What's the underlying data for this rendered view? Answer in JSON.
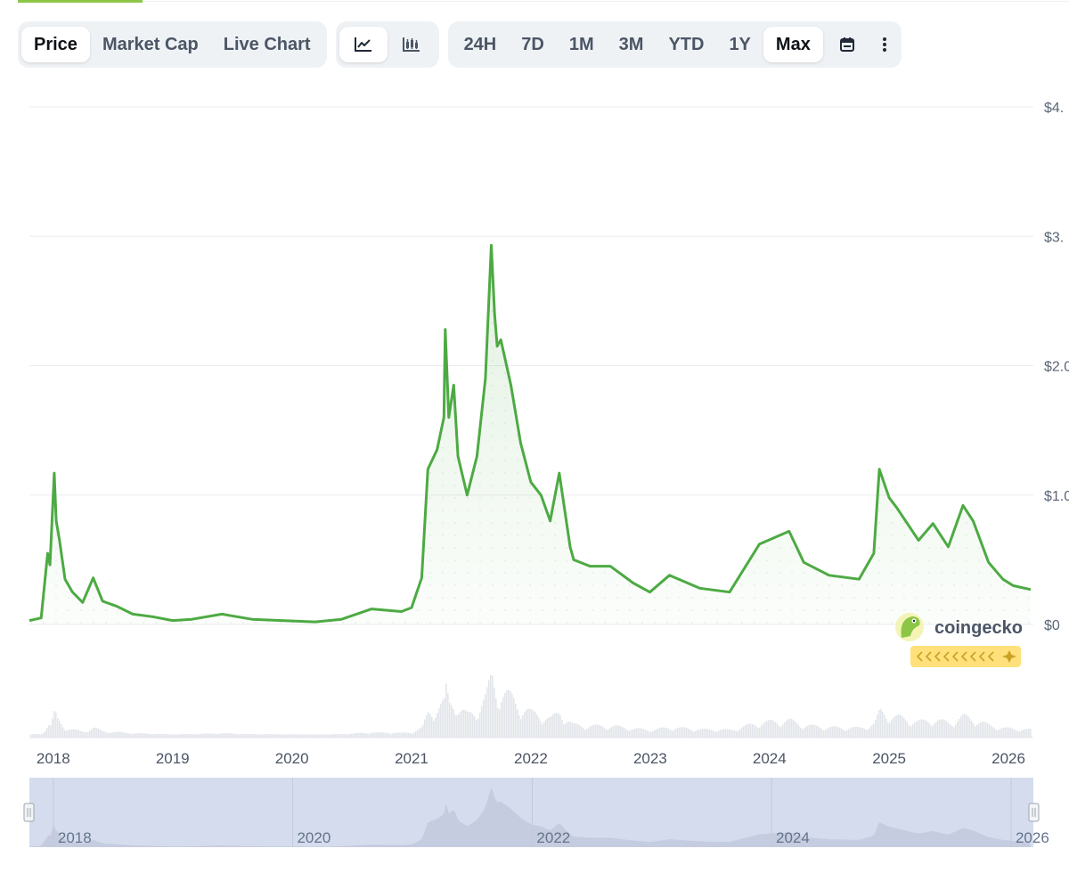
{
  "tabs": [
    {
      "label": "Price",
      "active": true
    },
    {
      "label": "Market Cap",
      "active": false
    },
    {
      "label": "Live Chart",
      "active": false
    }
  ],
  "chart_types": [
    {
      "icon": "line-chart-icon",
      "active": true
    },
    {
      "icon": "candlestick-chart-icon",
      "active": false
    }
  ],
  "ranges": [
    {
      "label": "24H",
      "active": false
    },
    {
      "label": "7D",
      "active": false
    },
    {
      "label": "1M",
      "active": false
    },
    {
      "label": "3M",
      "active": false
    },
    {
      "label": "YTD",
      "active": false
    },
    {
      "label": "1Y",
      "active": false
    },
    {
      "label": "Max",
      "active": true
    }
  ],
  "toolbar_icons": {
    "calendar": "calendar-icon",
    "more": "more-vertical-icon"
  },
  "watermark": {
    "text": "coingecko",
    "logo": "coingecko-logo-icon"
  },
  "colors": {
    "line": "#4daa43",
    "accent": "#8dc647",
    "volume": "#e2e5ea",
    "navigator": "#d5dcee"
  },
  "chart_data": {
    "type": "line",
    "title": "",
    "xlabel": "",
    "ylabel": "",
    "y_ticks": [
      "$0",
      "$1.0",
      "$2.0",
      "$3.",
      "$4."
    ],
    "ylim": [
      0,
      4.0
    ],
    "x_range": [
      "2017-10-20",
      "2026-03-10"
    ],
    "x_ticks": [
      "2018",
      "2019",
      "2020",
      "2021",
      "2022",
      "2023",
      "2024",
      "2025",
      "2026"
    ],
    "navigator_ticks": [
      "2018",
      "2020",
      "2022",
      "2024",
      "2026"
    ],
    "grid": true,
    "series": [
      {
        "values": [
          [
            "2017-10-20",
            0.03
          ],
          [
            "2017-11-25",
            0.05
          ],
          [
            "2017-12-15",
            0.55
          ],
          [
            "2017-12-22",
            0.46
          ],
          [
            "2018-01-04",
            1.17
          ],
          [
            "2018-01-10",
            0.8
          ],
          [
            "2018-01-20",
            0.65
          ],
          [
            "2018-02-06",
            0.35
          ],
          [
            "2018-03-01",
            0.25
          ],
          [
            "2018-04-01",
            0.17
          ],
          [
            "2018-05-03",
            0.36
          ],
          [
            "2018-06-01",
            0.18
          ],
          [
            "2018-07-15",
            0.14
          ],
          [
            "2018-09-01",
            0.08
          ],
          [
            "2018-11-01",
            0.06
          ],
          [
            "2019-01-01",
            0.03
          ],
          [
            "2019-03-01",
            0.04
          ],
          [
            "2019-06-01",
            0.08
          ],
          [
            "2019-09-01",
            0.04
          ],
          [
            "2019-12-01",
            0.03
          ],
          [
            "2020-03-12",
            0.02
          ],
          [
            "2020-06-01",
            0.04
          ],
          [
            "2020-09-01",
            0.12
          ],
          [
            "2020-12-01",
            0.1
          ],
          [
            "2021-01-01",
            0.13
          ],
          [
            "2021-02-01",
            0.36
          ],
          [
            "2021-02-20",
            1.2
          ],
          [
            "2021-03-20",
            1.35
          ],
          [
            "2021-04-10",
            1.6
          ],
          [
            "2021-04-14",
            2.28
          ],
          [
            "2021-04-25",
            1.6
          ],
          [
            "2021-05-10",
            1.85
          ],
          [
            "2021-05-23",
            1.3
          ],
          [
            "2021-06-20",
            1.0
          ],
          [
            "2021-07-20",
            1.3
          ],
          [
            "2021-08-15",
            1.9
          ],
          [
            "2021-09-02",
            2.93
          ],
          [
            "2021-09-12",
            2.4
          ],
          [
            "2021-09-20",
            2.15
          ],
          [
            "2021-10-01",
            2.2
          ],
          [
            "2021-11-01",
            1.85
          ],
          [
            "2021-12-01",
            1.4
          ],
          [
            "2022-01-01",
            1.1
          ],
          [
            "2022-02-01",
            1.0
          ],
          [
            "2022-03-01",
            0.8
          ],
          [
            "2022-03-29",
            1.17
          ],
          [
            "2022-05-01",
            0.6
          ],
          [
            "2022-05-12",
            0.5
          ],
          [
            "2022-07-01",
            0.45
          ],
          [
            "2022-09-01",
            0.45
          ],
          [
            "2022-11-10",
            0.32
          ],
          [
            "2022-12-31",
            0.25
          ],
          [
            "2023-03-01",
            0.38
          ],
          [
            "2023-06-01",
            0.28
          ],
          [
            "2023-09-01",
            0.25
          ],
          [
            "2023-12-01",
            0.62
          ],
          [
            "2024-03-01",
            0.72
          ],
          [
            "2024-04-15",
            0.48
          ],
          [
            "2024-07-01",
            0.38
          ],
          [
            "2024-10-01",
            0.35
          ],
          [
            "2024-11-15",
            0.55
          ],
          [
            "2024-12-02",
            1.2
          ],
          [
            "2025-01-01",
            0.98
          ],
          [
            "2025-01-25",
            0.9
          ],
          [
            "2025-04-01",
            0.65
          ],
          [
            "2025-05-15",
            0.78
          ],
          [
            "2025-07-01",
            0.6
          ],
          [
            "2025-08-15",
            0.92
          ],
          [
            "2025-09-15",
            0.8
          ],
          [
            "2025-11-01",
            0.48
          ],
          [
            "2025-12-15",
            0.35
          ],
          [
            "2026-01-15",
            0.3
          ],
          [
            "2026-03-10",
            0.27
          ]
        ]
      }
    ]
  }
}
